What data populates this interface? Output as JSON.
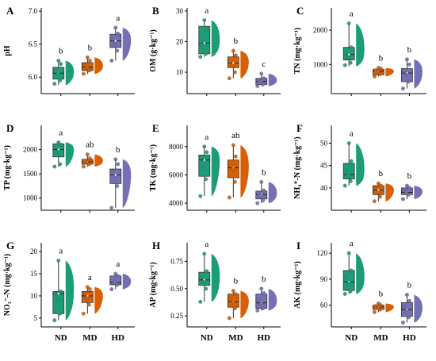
{
  "colors": {
    "ND": "#1b9e77",
    "MD": "#d95f02",
    "HD": "#7570b3",
    "axis": "#000000"
  },
  "chart_data": [
    {
      "type": "box",
      "panel": "A",
      "ylabel": "pH",
      "ylim": [
        5.75,
        7.05
      ],
      "yticks": [
        "6.0",
        "6.5",
        "7.0"
      ],
      "ytick_values": [
        6.0,
        6.5,
        7.0
      ],
      "categories": [
        "ND",
        "MD",
        "HD"
      ],
      "boxes": [
        {
          "min": 5.88,
          "q1": 5.97,
          "median": 6.06,
          "q3": 6.15,
          "max": 6.25,
          "letter": "b",
          "points": [
            5.9,
            5.95,
            6.05,
            6.12,
            6.2,
            6.25
          ]
        },
        {
          "min": 6.05,
          "q1": 6.1,
          "median": 6.15,
          "q3": 6.22,
          "max": 6.3,
          "letter": "b",
          "points": [
            6.05,
            6.1,
            6.14,
            6.18,
            6.25,
            6.3
          ]
        },
        {
          "min": 6.25,
          "q1": 6.45,
          "median": 6.55,
          "q3": 6.65,
          "max": 6.75,
          "letter": "a",
          "points": [
            6.25,
            6.4,
            6.5,
            6.58,
            6.66,
            6.75
          ]
        }
      ]
    },
    {
      "type": "box",
      "panel": "B",
      "ylabel": "OM (g·kg⁻¹)",
      "ylim": [
        3,
        31
      ],
      "yticks": [
        "10",
        "20",
        "30"
      ],
      "ytick_values": [
        10,
        20,
        30
      ],
      "categories": [
        "ND",
        "MD",
        "HD"
      ],
      "boxes": [
        {
          "min": 15,
          "q1": 16,
          "median": 19.5,
          "q3": 25,
          "max": 27,
          "letter": "a",
          "points": [
            15,
            16,
            18,
            19,
            24,
            27
          ]
        },
        {
          "min": 8,
          "q1": 11.5,
          "median": 13,
          "q3": 15,
          "max": 17,
          "letter": "b",
          "points": [
            8,
            10,
            12,
            13.5,
            15.5,
            17
          ]
        },
        {
          "min": 5.5,
          "q1": 6,
          "median": 7,
          "q3": 8,
          "max": 9.5,
          "letter": "c",
          "points": [
            5.5,
            6,
            7,
            7.5,
            8,
            9.5
          ]
        }
      ]
    },
    {
      "type": "box",
      "panel": "C",
      "ylabel": "TN (mg·kg⁻¹)",
      "ylim": [
        150,
        2650
      ],
      "yticks": [
        "1000",
        "2000"
      ],
      "ytick_values": [
        1000,
        2000
      ],
      "categories": [
        "ND",
        "MD",
        "HD"
      ],
      "boxes": [
        {
          "min": 950,
          "q1": 1130,
          "median": 1290,
          "q3": 1500,
          "max": 2200,
          "letter": "a",
          "points": [
            980,
            1050,
            1200,
            1300,
            1500,
            2200
          ]
        },
        {
          "min": 650,
          "q1": 700,
          "median": 800,
          "q3": 860,
          "max": 900,
          "letter": "b",
          "points": [
            650,
            720,
            780,
            830,
            880,
            900
          ]
        },
        {
          "min": 300,
          "q1": 500,
          "median": 750,
          "q3": 880,
          "max": 1150,
          "letter": "b",
          "points": [
            300,
            500,
            700,
            800,
            1000,
            1150
          ]
        }
      ]
    },
    {
      "type": "box",
      "panel": "D",
      "ylabel": "TP (mg·kg⁻¹)",
      "ylim": [
        750,
        2500
      ],
      "yticks": [
        "1000",
        "1500",
        "2000"
      ],
      "ytick_values": [
        1000,
        1500,
        2000
      ],
      "categories": [
        "ND",
        "MD",
        "HD"
      ],
      "boxes": [
        {
          "min": 1650,
          "q1": 1850,
          "median": 2000,
          "q3": 2120,
          "max": 2150,
          "letter": "a",
          "points": [
            1650,
            1700,
            1950,
            2050,
            2100,
            2150
          ]
        },
        {
          "min": 1650,
          "q1": 1700,
          "median": 1750,
          "q3": 1800,
          "max": 1900,
          "letter": "ab",
          "points": [
            1650,
            1700,
            1740,
            1770,
            1820,
            1900
          ]
        },
        {
          "min": 800,
          "q1": 1300,
          "median": 1480,
          "q3": 1600,
          "max": 1800,
          "letter": "b",
          "points": [
            800,
            1250,
            1400,
            1550,
            1700,
            1800
          ]
        }
      ]
    },
    {
      "type": "box",
      "panel": "E",
      "ylabel": "TK (mg·kg⁻¹)",
      "ylim": [
        3500,
        9500
      ],
      "yticks": [
        "4000",
        "6000",
        "8000"
      ],
      "ytick_values": [
        4000,
        6000,
        8000
      ],
      "categories": [
        "ND",
        "MD",
        "HD"
      ],
      "boxes": [
        {
          "min": 4500,
          "q1": 5900,
          "median": 7050,
          "q3": 7400,
          "max": 8000,
          "letter": "a",
          "points": [
            4500,
            5700,
            6500,
            7200,
            7600,
            8000
          ]
        },
        {
          "min": 4400,
          "q1": 5800,
          "median": 6500,
          "q3": 7050,
          "max": 8100,
          "letter": "ab",
          "points": [
            4400,
            5500,
            6400,
            6700,
            7300,
            8100
          ]
        },
        {
          "min": 4000,
          "q1": 4300,
          "median": 4600,
          "q3": 4850,
          "max": 5500,
          "letter": "b",
          "points": [
            4000,
            4200,
            4500,
            4700,
            4900,
            5500
          ]
        }
      ]
    },
    {
      "type": "box",
      "panel": "F",
      "ylabel": "NH₄⁺-N (mg·kg⁻¹)",
      "ylim": [
        35,
        54
      ],
      "yticks": [
        "40",
        "45",
        "50"
      ],
      "ytick_values": [
        40,
        45,
        50
      ],
      "categories": [
        "ND",
        "MD",
        "HD"
      ],
      "boxes": [
        {
          "min": 40.5,
          "q1": 42,
          "median": 43,
          "q3": 45.5,
          "max": 50,
          "letter": "a",
          "points": [
            40.5,
            41.5,
            43,
            44,
            46,
            50
          ]
        },
        {
          "min": 37,
          "q1": 38.5,
          "median": 39.5,
          "q3": 40.5,
          "max": 41,
          "letter": "b",
          "points": [
            37,
            38,
            39,
            40,
            40.5,
            41
          ]
        },
        {
          "min": 37.5,
          "q1": 38.5,
          "median": 39,
          "q3": 40,
          "max": 40.5,
          "letter": "b",
          "points": [
            37.5,
            38.5,
            39,
            39.5,
            40,
            40.5
          ]
        }
      ]
    },
    {
      "type": "box",
      "panel": "G",
      "ylabel": "NO₃⁻-N (mg·kg⁻¹)",
      "ylim": [
        3,
        22
      ],
      "yticks": [
        "5",
        "10",
        "15",
        "20"
      ],
      "ytick_values": [
        5,
        10,
        15,
        20
      ],
      "categories": [
        "ND",
        "MD",
        "HD"
      ],
      "boxes": [
        {
          "min": 4.5,
          "q1": 6,
          "median": 10.5,
          "q3": 11,
          "max": 18,
          "letter": "a",
          "points": [
            4.5,
            6,
            9,
            10.5,
            11,
            18
          ]
        },
        {
          "min": 6,
          "q1": 8.5,
          "median": 10,
          "q3": 11,
          "max": 12,
          "letter": "a",
          "points": [
            6,
            8,
            9.5,
            10.5,
            11.5,
            12
          ]
        },
        {
          "min": 11.5,
          "q1": 12.5,
          "median": 13,
          "q3": 14.5,
          "max": 15,
          "letter": "a",
          "points": [
            11.5,
            12.5,
            13,
            13.5,
            14.5,
            15
          ]
        }
      ]
    },
    {
      "type": "box",
      "panel": "H",
      "ylabel": "AP (mg·kg⁻¹)",
      "ylim": [
        0.15,
        0.92
      ],
      "yticks": [
        "0.25",
        "0.50",
        "0.75"
      ],
      "ytick_values": [
        0.25,
        0.5,
        0.75
      ],
      "categories": [
        "ND",
        "MD",
        "HD"
      ],
      "boxes": [
        {
          "min": 0.38,
          "q1": 0.53,
          "median": 0.58,
          "q3": 0.65,
          "max": 0.82,
          "letter": "a",
          "points": [
            0.38,
            0.5,
            0.56,
            0.6,
            0.66,
            0.82
          ]
        },
        {
          "min": 0.23,
          "q1": 0.33,
          "median": 0.38,
          "q3": 0.45,
          "max": 0.48,
          "letter": "b",
          "points": [
            0.23,
            0.32,
            0.37,
            0.41,
            0.45,
            0.48
          ]
        },
        {
          "min": 0.3,
          "q1": 0.32,
          "median": 0.37,
          "q3": 0.45,
          "max": 0.5,
          "letter": "b",
          "points": [
            0.3,
            0.32,
            0.36,
            0.4,
            0.46,
            0.5
          ]
        }
      ]
    },
    {
      "type": "box",
      "panel": "I",
      "ylabel": "AK (mg·kg⁻¹)",
      "ylim": [
        35,
        132
      ],
      "yticks": [
        "60",
        "90",
        "120"
      ],
      "ytick_values": [
        60,
        90,
        120
      ],
      "categories": [
        "ND",
        "MD",
        "HD"
      ],
      "boxes": [
        {
          "min": 73,
          "q1": 77,
          "median": 87,
          "q3": 100,
          "max": 120,
          "letter": "a",
          "points": [
            73,
            76,
            85,
            92,
            100,
            120
          ]
        },
        {
          "min": 52,
          "q1": 55,
          "median": 58,
          "q3": 60,
          "max": 62,
          "letter": "b",
          "points": [
            52,
            55,
            57,
            59,
            60,
            62
          ]
        },
        {
          "min": 40,
          "q1": 47,
          "median": 55,
          "q3": 63,
          "max": 72,
          "letter": "b",
          "points": [
            40,
            46,
            53,
            58,
            65,
            72
          ]
        }
      ]
    }
  ]
}
